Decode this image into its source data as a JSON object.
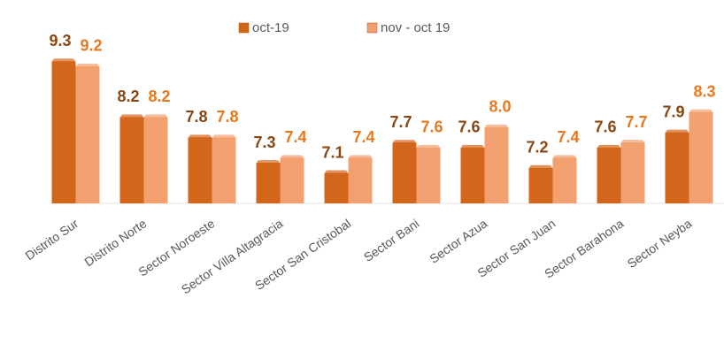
{
  "chart_data": {
    "type": "bar",
    "categories": [
      "Distrito Sur",
      "Distrito Norte",
      "Sector Noroeste",
      "Sector Villa Altagracia",
      "Sector San Cristobal",
      "Sector Bani",
      "Sector Azua",
      "Sector San Juan",
      "Sector Barahona",
      "Sector Neyba"
    ],
    "series": [
      {
        "name": "oct-19",
        "color": "#d4661c",
        "label_color": "#8a4610",
        "values": [
          9.3,
          8.2,
          7.8,
          7.3,
          7.1,
          7.7,
          7.6,
          7.2,
          7.6,
          7.9
        ],
        "value_labels": [
          "9.3",
          "8.2",
          "7.8",
          "7.3",
          "7.1",
          "7.7",
          "7.6",
          "7.2",
          "7.6",
          "7.9"
        ]
      },
      {
        "name": "nov - oct 19",
        "color": "#f2a070",
        "label_color": "#e8781e",
        "values": [
          9.2,
          8.2,
          7.8,
          7.4,
          7.4,
          7.6,
          8.0,
          7.4,
          7.7,
          8.3
        ],
        "value_labels": [
          "9.2",
          "8.2",
          "7.8",
          "7.4",
          "7.4",
          "7.6",
          "8.0",
          "7.4",
          "7.7",
          "8.3"
        ]
      }
    ],
    "ylim": [
      6.5,
      9.6
    ],
    "legend": "top"
  }
}
